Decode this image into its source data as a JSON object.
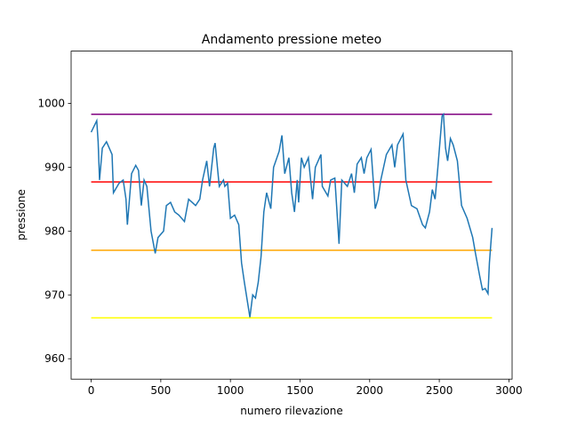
{
  "chart_data": {
    "type": "line",
    "title": "Andamento pressione meteo",
    "xlabel": "numero rilevazione",
    "ylabel": "pressione",
    "xlim": [
      -144,
      3023
    ],
    "ylim": [
      956.8,
      1008.2
    ],
    "xticks": [
      0,
      500,
      1000,
      1500,
      2000,
      2500,
      3000
    ],
    "yticks": [
      960,
      970,
      980,
      990,
      1000
    ],
    "series": [
      {
        "color": "#800080",
        "x": [
          0,
          2879
        ],
        "values": [
          998.3,
          998.3
        ]
      },
      {
        "color": "#ff0000",
        "x": [
          0,
          2879
        ],
        "values": [
          987.7,
          987.7
        ]
      },
      {
        "color": "#ffa500",
        "x": [
          0,
          2879
        ],
        "values": [
          977.0,
          977.0
        ]
      },
      {
        "color": "#ffff00",
        "x": [
          0,
          2879
        ],
        "values": [
          966.4,
          966.4
        ]
      },
      {
        "color": "#1f77b4",
        "x": [
          0,
          40,
          50,
          60,
          80,
          110,
          150,
          160,
          200,
          230,
          250,
          260,
          290,
          320,
          340,
          360,
          380,
          400,
          430,
          460,
          480,
          520,
          540,
          570,
          600,
          630,
          670,
          700,
          750,
          780,
          800,
          830,
          850,
          880,
          890,
          920,
          950,
          960,
          980,
          1000,
          1030,
          1060,
          1080,
          1100,
          1140,
          1160,
          1180,
          1200,
          1220,
          1240,
          1260,
          1290,
          1310,
          1350,
          1370,
          1390,
          1420,
          1440,
          1460,
          1480,
          1490,
          1510,
          1530,
          1560,
          1590,
          1610,
          1630,
          1650,
          1660,
          1700,
          1720,
          1750,
          1780,
          1800,
          1840,
          1870,
          1890,
          1910,
          1940,
          1960,
          1980,
          2010,
          2040,
          2060,
          2080,
          2120,
          2160,
          2180,
          2200,
          2240,
          2260,
          2300,
          2340,
          2380,
          2400,
          2430,
          2450,
          2470,
          2490,
          2520,
          2530,
          2545,
          2560,
          2580,
          2600,
          2630,
          2660,
          2700,
          2740,
          2760,
          2790,
          2810,
          2830,
          2850,
          2860,
          2879
        ],
        "values": [
          995.5,
          997.3,
          994,
          988,
          993,
          994,
          992,
          986,
          987.5,
          988,
          985,
          981,
          989,
          990.3,
          989.5,
          984,
          988,
          987,
          980,
          976.5,
          979,
          980,
          984,
          984.5,
          983,
          982.5,
          981.5,
          985,
          984,
          985,
          988,
          991,
          987,
          993,
          993.8,
          987,
          988,
          987,
          987.5,
          982,
          982.5,
          981,
          975,
          972,
          966.5,
          970,
          969.5,
          972,
          976,
          983,
          986,
          983.5,
          990,
          992.5,
          995,
          989,
          991.5,
          986,
          983,
          988,
          984.5,
          991.5,
          990,
          991.5,
          985,
          990,
          991,
          992,
          987,
          985.5,
          988,
          988.3,
          978,
          988,
          987,
          989,
          986,
          990.5,
          991.5,
          989,
          991.5,
          992.8,
          983.5,
          985,
          988,
          992,
          993.5,
          990,
          993.5,
          995.2,
          988,
          984,
          983.5,
          981,
          980.5,
          983,
          986.5,
          985,
          990,
          998,
          998.3,
          993,
          991,
          994.5,
          993.5,
          991,
          984,
          982,
          979,
          976.5,
          973,
          970.8,
          971,
          970.2,
          975,
          980.5
        ]
      }
    ]
  }
}
